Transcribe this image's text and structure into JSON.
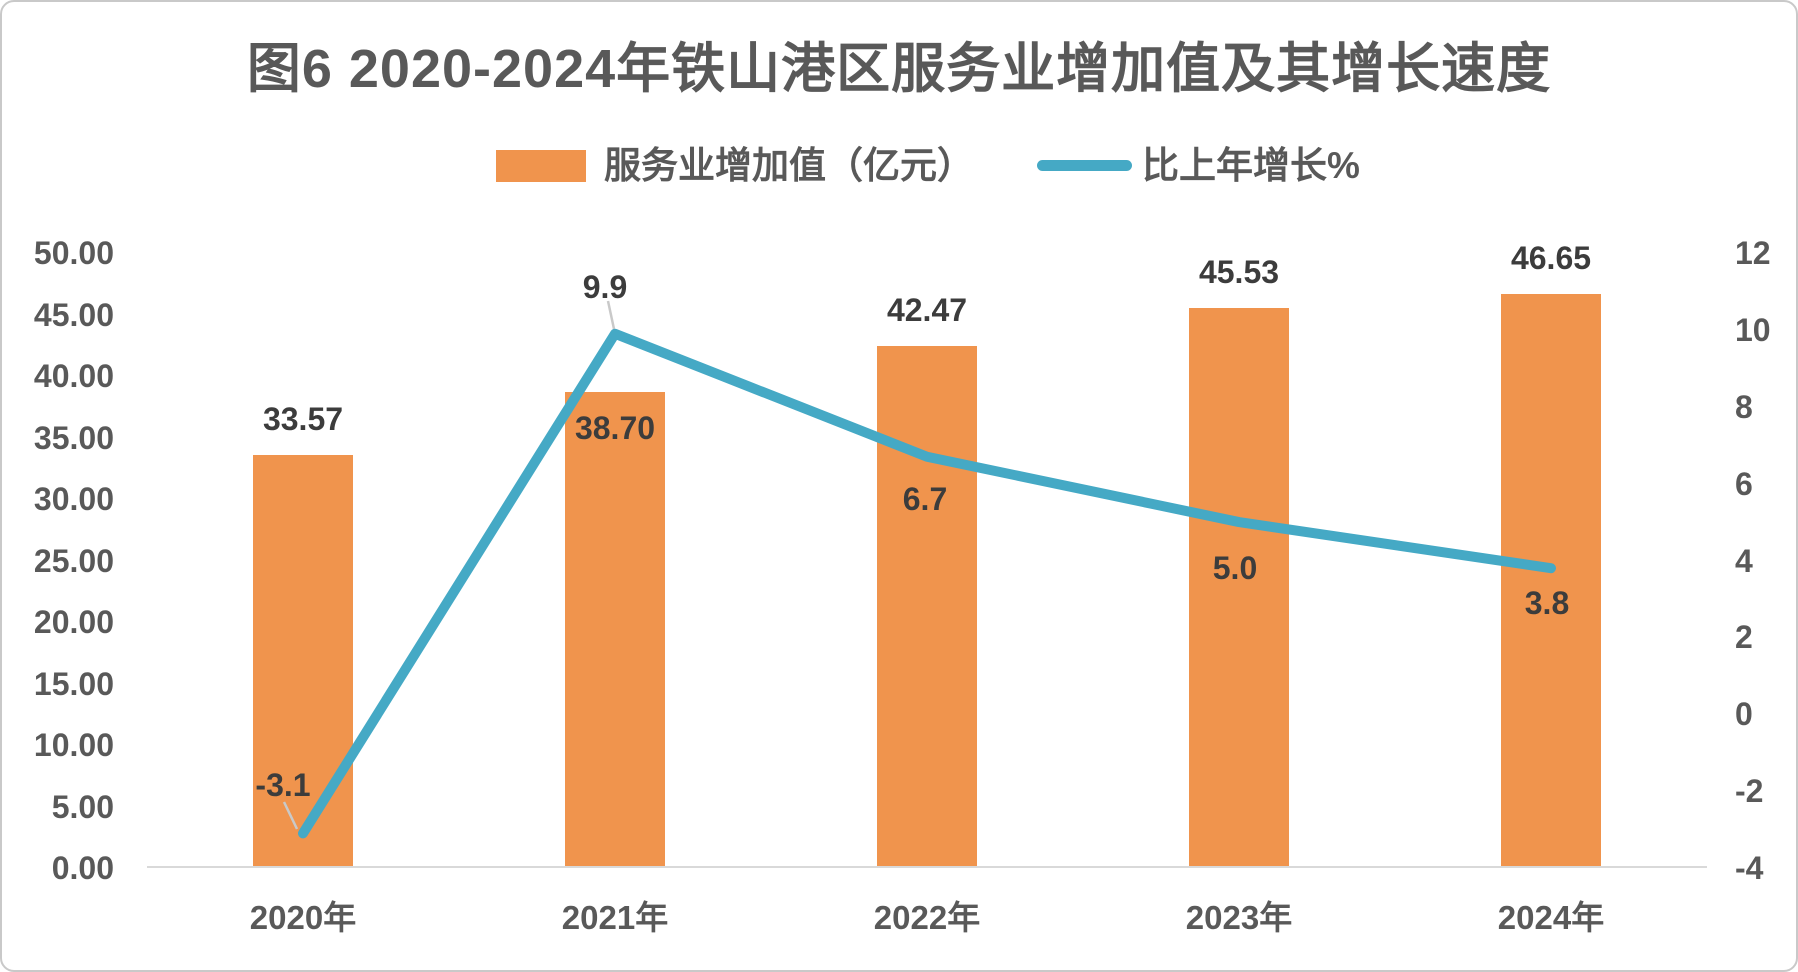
{
  "chart_data": {
    "type": "bar+line",
    "title": "图6 2020-2024年铁山港区服务业增加值及其增长速度",
    "categories": [
      "2020年",
      "2021年",
      "2022年",
      "2023年",
      "2024年"
    ],
    "series": [
      {
        "name": "服务业增加值（亿元）",
        "type": "bar",
        "axis": "left",
        "values": [
          33.57,
          38.7,
          42.47,
          45.53,
          46.65
        ],
        "labels": [
          "33.57",
          "38.70",
          "42.47",
          "45.53",
          "46.65"
        ],
        "color": "#F0944D"
      },
      {
        "name": "比上年增长%",
        "type": "line",
        "axis": "right",
        "values": [
          -3.1,
          9.9,
          6.7,
          5.0,
          3.8
        ],
        "labels": [
          "-3.1",
          "9.9",
          "6.7",
          "5.0",
          "3.8"
        ],
        "color": "#45A9C5"
      }
    ],
    "axes": {
      "left": {
        "min": 0,
        "max": 50,
        "step": 5,
        "ticks": [
          "0.00",
          "5.00",
          "10.00",
          "15.00",
          "20.00",
          "25.00",
          "30.00",
          "35.00",
          "40.00",
          "45.00",
          "50.00"
        ]
      },
      "right": {
        "min": -4,
        "max": 12,
        "step": 2,
        "ticks": [
          "-4",
          "-2",
          "0",
          "2",
          "4",
          "6",
          "8",
          "10",
          "12"
        ]
      }
    },
    "legend_position": "top",
    "grid": "off",
    "colors": {
      "bar": "#F0944D",
      "line": "#45A9C5",
      "axis_text": "#595959",
      "data_label": "#3C3C3C",
      "baseline": "#D9D9D9",
      "leader": "#C9C9C9",
      "background": "#FFFFFF"
    }
  }
}
